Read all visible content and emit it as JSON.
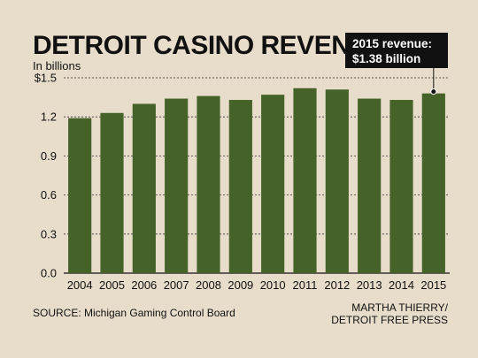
{
  "chart_data": {
    "type": "bar",
    "title": "DETROIT CASINO REVENUE",
    "subtitle": "In billions",
    "categories": [
      "2004",
      "2005",
      "2006",
      "2007",
      "2008",
      "2009",
      "2010",
      "2011",
      "2012",
      "2013",
      "2014",
      "2015"
    ],
    "values": [
      1.19,
      1.23,
      1.3,
      1.34,
      1.36,
      1.33,
      1.37,
      1.42,
      1.41,
      1.34,
      1.33,
      1.38
    ],
    "ylim": [
      0,
      1.5
    ],
    "yticks": [
      0,
      0.3,
      0.6,
      0.9,
      1.2,
      1.5
    ],
    "ytick_labels": [
      "0.0",
      "0.3",
      "0.6",
      "0.9",
      "1.2",
      "$1.5"
    ],
    "grid": true,
    "bar_color": "#456228",
    "annotation": {
      "category": "2015",
      "line1": "2015 revenue:",
      "line2": "$1.38 billion"
    },
    "source": "SOURCE: Michigan Gaming Control Board",
    "credit_line1": "MARTHA THIERRY/",
    "credit_line2": "DETROIT FREE PRESS"
  }
}
